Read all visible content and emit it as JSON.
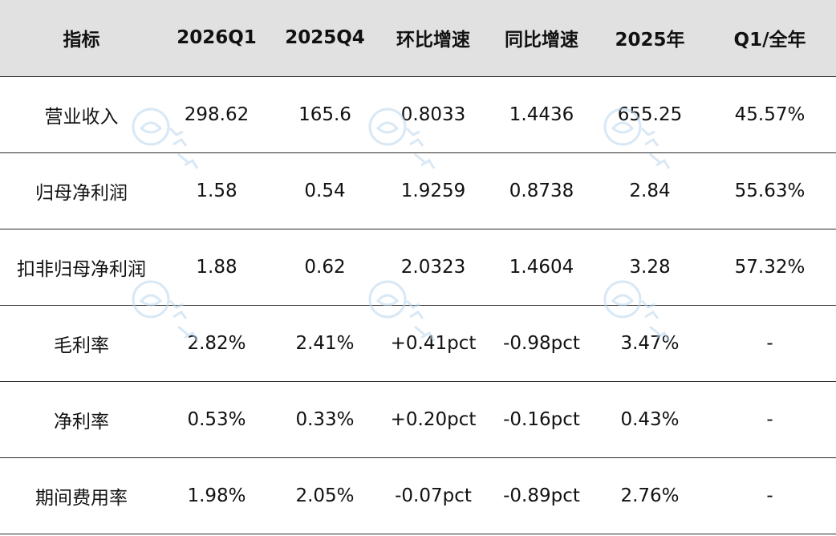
{
  "table": {
    "headers": [
      "指标",
      "2026Q1",
      "2025Q4",
      "环比增速",
      "同比增速",
      "2025年",
      "Q1/全年"
    ],
    "rows": [
      [
        "营业收入",
        "298.62",
        "165.6",
        "0.8033",
        "1.4436",
        "655.25",
        "45.57%"
      ],
      [
        "归母净利润",
        "1.58",
        "0.54",
        "1.9259",
        "0.8738",
        "2.84",
        "55.63%"
      ],
      [
        "扣非归母净利润",
        "1.88",
        "0.62",
        "2.0323",
        "1.4604",
        "3.28",
        "57.32%"
      ],
      [
        "毛利率",
        "2.82%",
        "2.41%",
        "+0.41pct",
        "-0.98pct",
        "3.47%",
        "-"
      ],
      [
        "净利率",
        "0.53%",
        "0.33%",
        "+0.20pct",
        "-0.16pct",
        "0.43%",
        "-"
      ],
      [
        "期间费用率",
        "1.98%",
        "2.05%",
        "-0.07pct",
        "-0.89pct",
        "2.76%",
        "-"
      ]
    ]
  },
  "watermark": {
    "text": "芯八哥",
    "color": "#b9d6ee"
  }
}
